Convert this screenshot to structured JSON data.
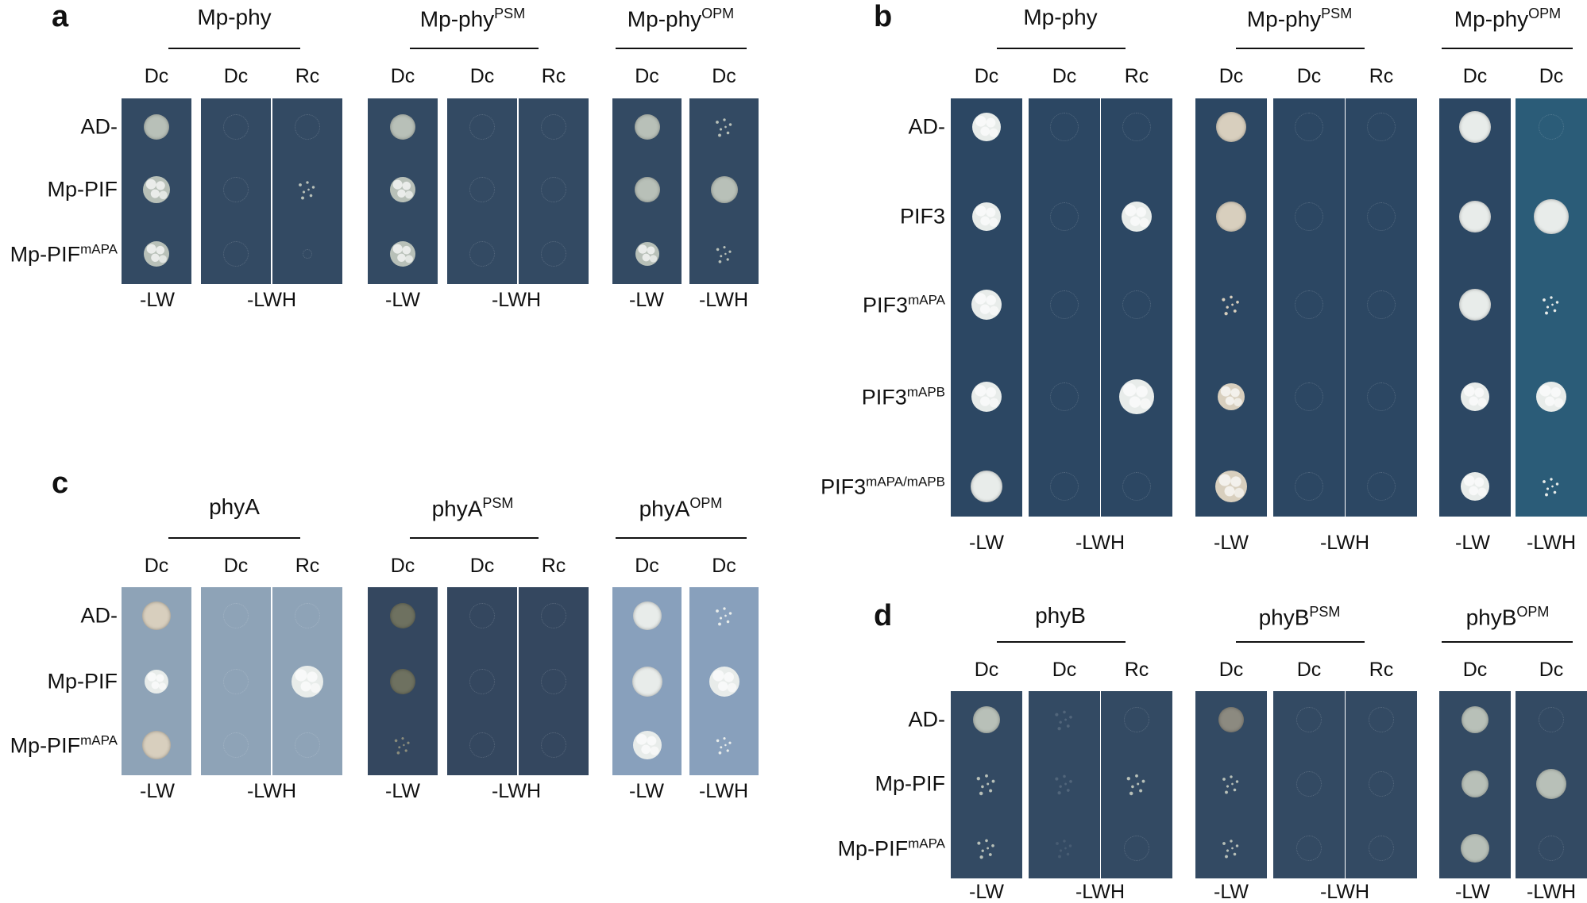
{
  "colors": {
    "text": "#111111",
    "plate_dark_a": "#334a63",
    "plate_dark_b": "#52697f",
    "plate_light_c1": "#8ea3b7",
    "plate_dark_c2": "#34475f",
    "plate_light_c3": "#88a0bc",
    "plate_b_dark": "#2c4763",
    "plate_b_teal": "#2b5c78",
    "colony_white": "#e8ecea",
    "colony_beige": "#d8cfbe",
    "colony_grey": "#b8c0b8"
  },
  "panels": [
    {
      "letter": "a",
      "groups": [
        {
          "name": "Mp-phy",
          "sup": "",
          "cols": [
            "Dc",
            "Dc",
            "Rc"
          ],
          "conds": [
            "-LW",
            "-LWH"
          ]
        },
        {
          "name": "Mp-phy",
          "sup": "PSM",
          "cols": [
            "Dc",
            "Dc",
            "Rc"
          ],
          "conds": [
            "-LW",
            "-LWH"
          ]
        },
        {
          "name": "Mp-phy",
          "sup": "OPM",
          "cols": [
            "Dc",
            "Dc"
          ],
          "conds": [
            "-LW",
            "-LWH"
          ]
        }
      ],
      "rows": [
        {
          "name": "AD-",
          "sup": ""
        },
        {
          "name": "Mp-PIF",
          "sup": ""
        },
        {
          "name": "Mp-PIF",
          "sup": "mAPA"
        }
      ]
    },
    {
      "letter": "b",
      "groups": [
        {
          "name": "Mp-phy",
          "sup": "",
          "cols": [
            "Dc",
            "Dc",
            "Rc"
          ],
          "conds": [
            "-LW",
            "-LWH"
          ]
        },
        {
          "name": "Mp-phy",
          "sup": "PSM",
          "cols": [
            "Dc",
            "Dc",
            "Rc"
          ],
          "conds": [
            "-LW",
            "-LWH"
          ]
        },
        {
          "name": "Mp-phy",
          "sup": "OPM",
          "cols": [
            "Dc",
            "Dc"
          ],
          "conds": [
            "-LW",
            "-LWH"
          ]
        }
      ],
      "rows": [
        {
          "name": "AD-",
          "sup": ""
        },
        {
          "name": "PIF3",
          "sup": ""
        },
        {
          "name": "PIF3",
          "sup": "mAPA"
        },
        {
          "name": "PIF3",
          "sup": "mAPB"
        },
        {
          "name": "PIF3",
          "sup": "mAPA/mAPB"
        }
      ]
    },
    {
      "letter": "c",
      "groups": [
        {
          "name": "phyA",
          "sup": "",
          "cols": [
            "Dc",
            "Dc",
            "Rc"
          ],
          "conds": [
            "-LW",
            "-LWH"
          ]
        },
        {
          "name": "phyA",
          "sup": "PSM",
          "cols": [
            "Dc",
            "Dc",
            "Rc"
          ],
          "conds": [
            "-LW",
            "-LWH"
          ]
        },
        {
          "name": "phyA",
          "sup": "OPM",
          "cols": [
            "Dc",
            "Dc"
          ],
          "conds": [
            "-LW",
            "-LWH"
          ]
        }
      ],
      "rows": [
        {
          "name": "AD-",
          "sup": ""
        },
        {
          "name": "Mp-PIF",
          "sup": ""
        },
        {
          "name": "Mp-PIF",
          "sup": "mAPA"
        }
      ]
    },
    {
      "letter": "d",
      "groups": [
        {
          "name": "phyB",
          "sup": "",
          "cols": [
            "Dc",
            "Dc",
            "Rc"
          ],
          "conds": [
            "-LW",
            "-LWH"
          ]
        },
        {
          "name": "phyB",
          "sup": "PSM",
          "cols": [
            "Dc",
            "Dc",
            "Rc"
          ],
          "conds": [
            "-LW",
            "-LWH"
          ]
        },
        {
          "name": "phyB",
          "sup": "OPM",
          "cols": [
            "Dc",
            "Dc"
          ],
          "conds": [
            "-LW",
            "-LWH"
          ]
        }
      ],
      "rows": [
        {
          "name": "AD-",
          "sup": ""
        },
        {
          "name": "Mp-PIF",
          "sup": ""
        },
        {
          "name": "Mp-PIF",
          "sup": "mAPA"
        }
      ]
    }
  ]
}
